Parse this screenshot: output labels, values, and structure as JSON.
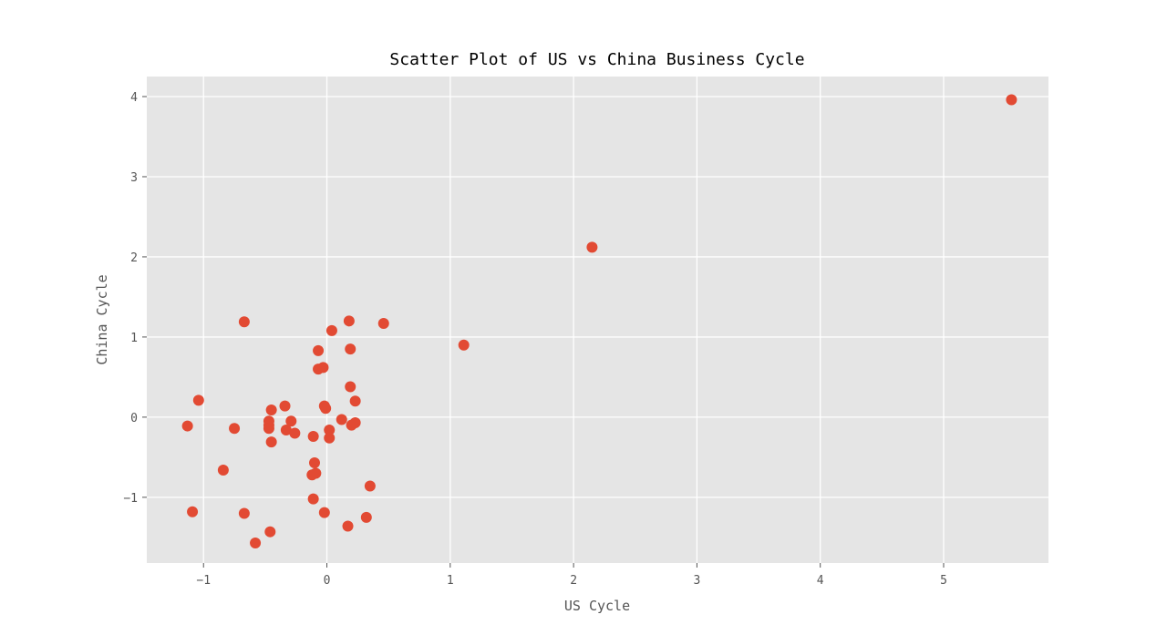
{
  "chart_data": {
    "type": "scatter",
    "title": "Scatter Plot of US vs China Business Cycle",
    "xlabel": "US Cycle",
    "ylabel": "China Cycle",
    "xlim": [
      -1.46,
      5.85
    ],
    "ylim": [
      -1.82,
      4.25
    ],
    "xticks": [
      -1,
      0,
      1,
      2,
      3,
      4,
      5
    ],
    "yticks": [
      -1,
      0,
      1,
      2,
      3,
      4
    ],
    "xtick_labels": [
      "−1",
      "0",
      "1",
      "2",
      "3",
      "4",
      "5"
    ],
    "ytick_labels": [
      "−1",
      "0",
      "1",
      "2",
      "3",
      "4"
    ],
    "grid": true,
    "colors": {
      "background": "#e5e5e5",
      "point": "#e24a33",
      "grid": "#ffffff"
    },
    "points": [
      {
        "x": 5.55,
        "y": 3.96
      },
      {
        "x": 2.15,
        "y": 2.12
      },
      {
        "x": 1.11,
        "y": 0.9
      },
      {
        "x": 0.46,
        "y": 1.17
      },
      {
        "x": 0.18,
        "y": 1.2
      },
      {
        "x": 0.04,
        "y": 1.08
      },
      {
        "x": -0.67,
        "y": 1.19
      },
      {
        "x": -0.07,
        "y": 0.83
      },
      {
        "x": 0.19,
        "y": 0.85
      },
      {
        "x": -0.07,
        "y": 0.6
      },
      {
        "x": -0.03,
        "y": 0.62
      },
      {
        "x": 0.19,
        "y": 0.38
      },
      {
        "x": -1.04,
        "y": 0.21
      },
      {
        "x": 0.23,
        "y": 0.2
      },
      {
        "x": -0.34,
        "y": 0.14
      },
      {
        "x": -0.02,
        "y": 0.14
      },
      {
        "x": -0.01,
        "y": 0.11
      },
      {
        "x": -0.45,
        "y": 0.09
      },
      {
        "x": -1.13,
        "y": -0.11
      },
      {
        "x": -0.75,
        "y": -0.14
      },
      {
        "x": -0.47,
        "y": -0.05
      },
      {
        "x": -0.47,
        "y": -0.1
      },
      {
        "x": -0.47,
        "y": -0.14
      },
      {
        "x": -0.29,
        "y": -0.05
      },
      {
        "x": -0.33,
        "y": -0.16
      },
      {
        "x": -0.26,
        "y": -0.2
      },
      {
        "x": -0.11,
        "y": -0.24
      },
      {
        "x": 0.02,
        "y": -0.16
      },
      {
        "x": 0.02,
        "y": -0.26
      },
      {
        "x": 0.12,
        "y": -0.03
      },
      {
        "x": 0.2,
        "y": -0.1
      },
      {
        "x": 0.23,
        "y": -0.07
      },
      {
        "x": -0.45,
        "y": -0.31
      },
      {
        "x": -0.1,
        "y": -0.57
      },
      {
        "x": -0.84,
        "y": -0.66
      },
      {
        "x": -0.09,
        "y": -0.7
      },
      {
        "x": -0.12,
        "y": -0.72
      },
      {
        "x": 0.35,
        "y": -0.86
      },
      {
        "x": -0.11,
        "y": -1.02
      },
      {
        "x": -1.09,
        "y": -1.18
      },
      {
        "x": -0.67,
        "y": -1.2
      },
      {
        "x": -0.02,
        "y": -1.19
      },
      {
        "x": 0.32,
        "y": -1.25
      },
      {
        "x": 0.17,
        "y": -1.36
      },
      {
        "x": -0.46,
        "y": -1.43
      },
      {
        "x": -0.58,
        "y": -1.57
      }
    ]
  }
}
